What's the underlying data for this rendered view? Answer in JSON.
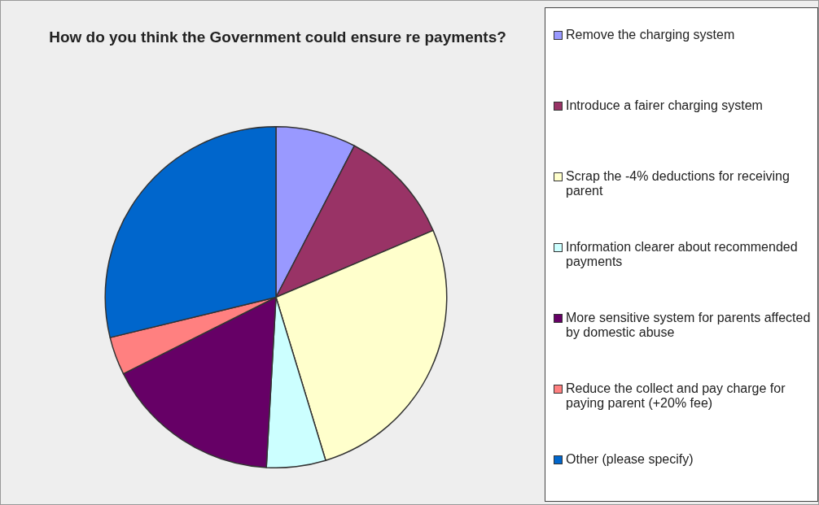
{
  "chart_data": {
    "type": "pie",
    "title": "How do you think the Government could ensure re payments?",
    "categories": [
      "Remove the charging system",
      "Introduce a fairer charging system",
      "Scrap the -4% deductions for receiving parent",
      "Information clearer about recommended payments",
      "More sensitive system for parents affected by domestic abuse",
      "Reduce the collect and pay charge for paying parent (+20% fee)",
      "Other (please specify)"
    ],
    "values": [
      7.6,
      11.0,
      26.7,
      5.6,
      16.7,
      3.6,
      28.8
    ],
    "colors": [
      "#9999ff",
      "#993366",
      "#ffffcc",
      "#ccffff",
      "#660066",
      "#ff8080",
      "#0066cc"
    ],
    "legend": "right"
  }
}
